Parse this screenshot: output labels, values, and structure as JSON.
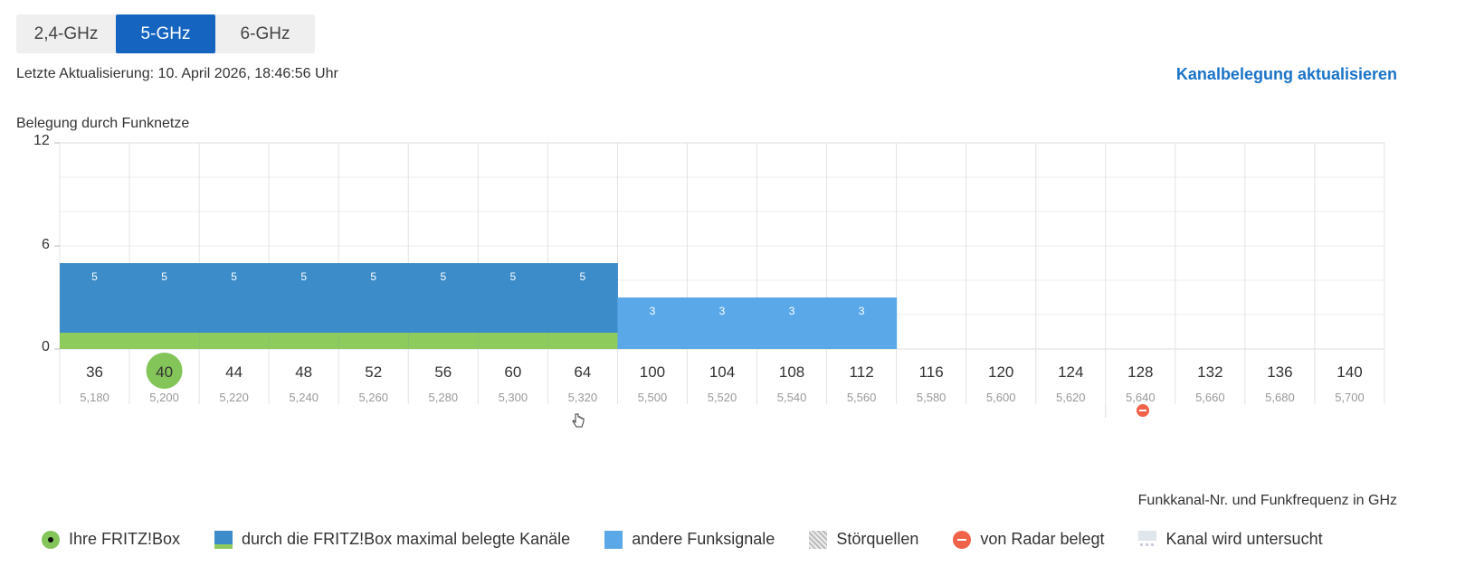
{
  "tabs": [
    {
      "label": "2,4-GHz",
      "active": false
    },
    {
      "label": "5-GHz",
      "active": true
    },
    {
      "label": "6-GHz",
      "active": false
    }
  ],
  "status": {
    "last_update": "Letzte Aktualisierung: 10. April 2026, 18:46:56 Uhr"
  },
  "actions": {
    "refresh_label": "Kanalbelegung aktualisieren"
  },
  "chart_data": {
    "type": "bar",
    "title": "Belegung durch Funknetze",
    "xlabel": "Funkkanal-Nr. und Funkfrequenz in GHz",
    "ylabel": "",
    "ylim": [
      0,
      12
    ],
    "yticks": [
      "0",
      "6",
      "12"
    ],
    "own_channel": "40",
    "radar_channels": [
      "128"
    ],
    "channels": [
      {
        "ch": "36",
        "freq": "5,180",
        "value": 5,
        "kind": "fritz"
      },
      {
        "ch": "40",
        "freq": "5,200",
        "value": 5,
        "kind": "fritz"
      },
      {
        "ch": "44",
        "freq": "5,220",
        "value": 5,
        "kind": "fritz"
      },
      {
        "ch": "48",
        "freq": "5,240",
        "value": 5,
        "kind": "fritz"
      },
      {
        "ch": "52",
        "freq": "5,260",
        "value": 5,
        "kind": "fritz"
      },
      {
        "ch": "56",
        "freq": "5,280",
        "value": 5,
        "kind": "fritz"
      },
      {
        "ch": "60",
        "freq": "5,300",
        "value": 5,
        "kind": "fritz"
      },
      {
        "ch": "64",
        "freq": "5,320",
        "value": 5,
        "kind": "fritz"
      },
      {
        "ch": "100",
        "freq": "5,500",
        "value": 3,
        "kind": "other"
      },
      {
        "ch": "104",
        "freq": "5,520",
        "value": 3,
        "kind": "other"
      },
      {
        "ch": "108",
        "freq": "5,540",
        "value": 3,
        "kind": "other"
      },
      {
        "ch": "112",
        "freq": "5,560",
        "value": 3,
        "kind": "other"
      },
      {
        "ch": "116",
        "freq": "5,580",
        "value": 0,
        "kind": "none"
      },
      {
        "ch": "120",
        "freq": "5,600",
        "value": 0,
        "kind": "none"
      },
      {
        "ch": "124",
        "freq": "5,620",
        "value": 0,
        "kind": "none"
      },
      {
        "ch": "128",
        "freq": "5,640",
        "value": 0,
        "kind": "none"
      },
      {
        "ch": "132",
        "freq": "5,660",
        "value": 0,
        "kind": "none"
      },
      {
        "ch": "136",
        "freq": "5,680",
        "value": 0,
        "kind": "none"
      },
      {
        "ch": "140",
        "freq": "5,700",
        "value": 0,
        "kind": "none"
      }
    ],
    "colors": {
      "fritz": "#3b8cc9",
      "fritz_base": "#8dcc5c",
      "other": "#5aa8e8",
      "own": "#84c55a",
      "radar": "#f0624a"
    }
  },
  "legend": [
    {
      "icon": "fritzbox-dot-icon",
      "label": "Ihre FRITZ!Box"
    },
    {
      "icon": "max-channels-swatch-icon",
      "label": "durch die FRITZ!Box maximal belegte Kanäle"
    },
    {
      "icon": "other-signals-swatch-icon",
      "label": "andere Funksignale"
    },
    {
      "icon": "interference-swatch-icon",
      "label": "Störquellen"
    },
    {
      "icon": "radar-icon",
      "label": "von Radar belegt"
    },
    {
      "icon": "scanning-icon",
      "label": "Kanal wird untersucht"
    }
  ]
}
